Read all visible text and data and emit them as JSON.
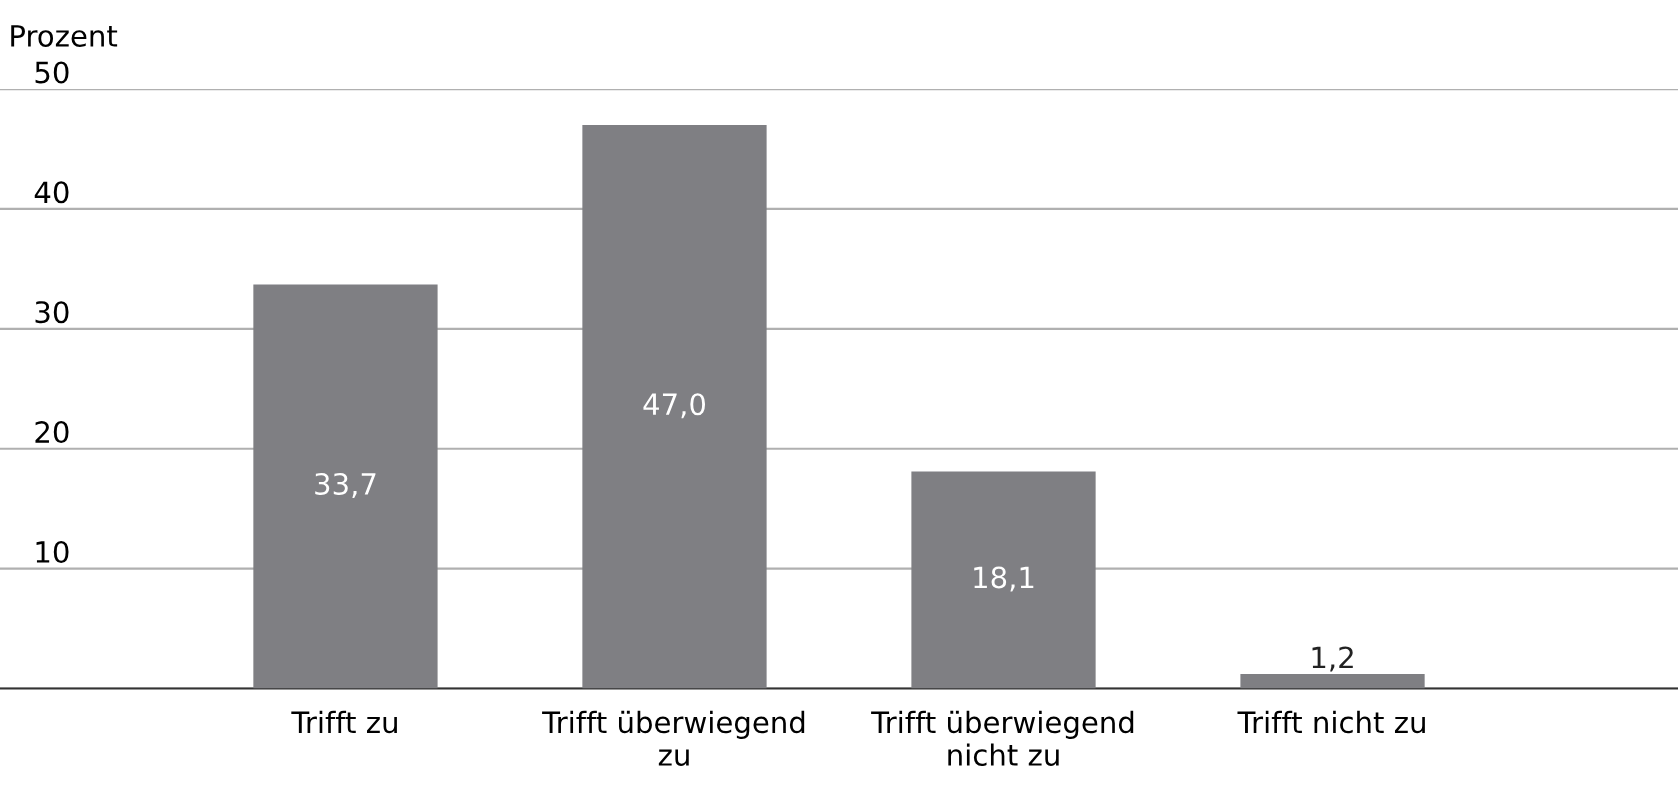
{
  "chart_data": {
    "type": "bar",
    "ylabel": "Prozent",
    "categories": [
      "Trifft zu",
      "Trifft überwiegend zu",
      "Trifft überwiegend nicht zu",
      "Trifft nicht zu"
    ],
    "values": [
      33.7,
      47.0,
      18.1,
      1.2
    ],
    "value_labels": [
      "33,7",
      "47,0",
      "18,1",
      "1,2"
    ],
    "color": "#7f7f83",
    "ylim": [
      0,
      50
    ],
    "yticks": [
      {
        "value": 0,
        "label": null
      },
      10,
      20,
      30,
      40,
      50
    ],
    "grid": "y",
    "legend": false
  }
}
